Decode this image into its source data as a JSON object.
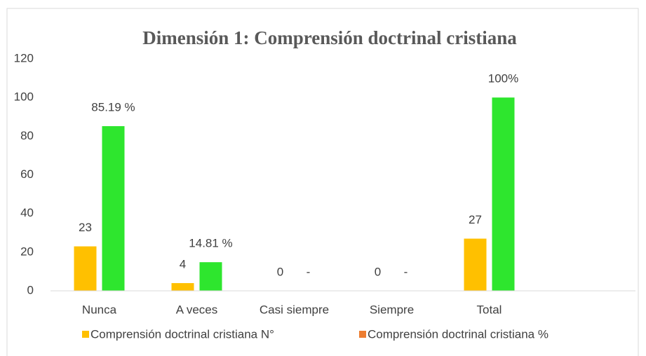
{
  "chart_data": {
    "type": "bar",
    "title": "Dimensión 1: Comprensión doctrinal cristiana",
    "categories": [
      "Nunca",
      "A veces",
      "Casi siempre",
      "Siempre",
      "Total",
      null
    ],
    "series": [
      {
        "name": "Comprensión doctrinal cristiana N°",
        "color": "#ffc000",
        "legend_color": "#ffc000",
        "values": [
          23,
          4,
          0,
          0,
          27,
          null
        ]
      },
      {
        "name": "Comprensión doctrinal cristiana %",
        "color": "#2ee62e",
        "legend_color": "#ed7d31",
        "values": [
          85.19,
          14.81,
          0,
          0,
          100,
          null
        ],
        "value_labels": [
          "85.19 %",
          "14.81 %",
          "-",
          "-",
          "100%",
          null
        ]
      }
    ],
    "ylim": [
      0,
      120
    ],
    "yticks": [
      0,
      20,
      40,
      60,
      80,
      100,
      120
    ],
    "grid": false,
    "legend": "bottom"
  }
}
